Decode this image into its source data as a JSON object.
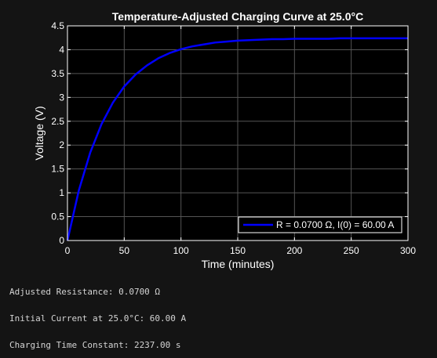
{
  "chart_data": {
    "type": "line",
    "title": "Temperature-Adjusted Charging Curve at 25.0°C",
    "xlabel": "Time (minutes)",
    "ylabel": "Voltage (V)",
    "xlim": [
      0,
      300
    ],
    "ylim": [
      0,
      4.5
    ],
    "xticks": [
      0,
      50,
      100,
      150,
      200,
      250,
      300
    ],
    "yticks": [
      0,
      0.5,
      1,
      1.5,
      2,
      2.5,
      3,
      3.5,
      4,
      4.5
    ],
    "xtick_labels": [
      "0",
      "50",
      "100",
      "150",
      "200",
      "250",
      "300"
    ],
    "ytick_labels": [
      "0",
      "0.5",
      "1",
      "1.5",
      "2",
      "2.5",
      "3",
      "3.5",
      "4",
      "4.5"
    ],
    "grid": true,
    "legend_location": "bottom-right",
    "series": [
      {
        "name": "R = 0.0700 Ω, I(0) = 60.00 A",
        "color": "#0000ff",
        "x": [
          0,
          10,
          20,
          30,
          40,
          50,
          60,
          70,
          80,
          90,
          100,
          110,
          120,
          130,
          140,
          150,
          160,
          170,
          180,
          190,
          200,
          210,
          220,
          230,
          240,
          250,
          260,
          270,
          280,
          290,
          300
        ],
        "y": [
          0,
          1.05,
          1.84,
          2.44,
          2.89,
          3.23,
          3.48,
          3.67,
          3.82,
          3.93,
          4.01,
          4.07,
          4.11,
          4.15,
          4.17,
          4.19,
          4.2,
          4.21,
          4.22,
          4.22,
          4.23,
          4.23,
          4.23,
          4.23,
          4.24,
          4.24,
          4.24,
          4.24,
          4.24,
          4.24,
          4.24
        ]
      }
    ]
  },
  "output": {
    "line1": "Adjusted Resistance: 0.0700 Ω",
    "line2": "Initial Current at 25.0°C: 60.00 A",
    "line3": "Charging Time Constant: 2237.00 s"
  },
  "colors": {
    "background": "#141414",
    "axes_background": "#000000",
    "axes_color": "#ffffff",
    "grid_color": "#555555",
    "output_text": "#d4d4d4"
  }
}
